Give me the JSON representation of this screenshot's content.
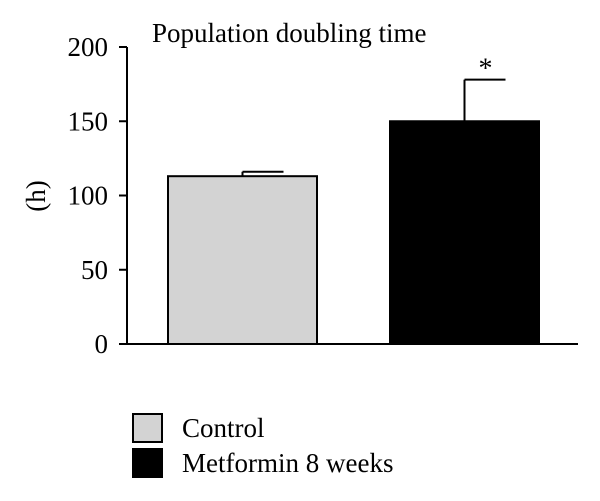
{
  "chart_data": {
    "type": "bar",
    "title": "Population doubling time",
    "xlabel": "",
    "ylabel": "(h)",
    "ylim": [
      0,
      200
    ],
    "yticks": [
      0,
      50,
      100,
      150,
      200
    ],
    "categories": [
      "Control",
      "Metformin 8 weeks"
    ],
    "values": [
      113,
      150
    ],
    "errors": [
      3,
      28
    ],
    "colors": [
      "#d3d3d3",
      "#000000"
    ],
    "annotations": [
      {
        "category": "Metformin 8 weeks",
        "text": "*"
      }
    ],
    "legend": {
      "position": "bottom-left",
      "entries": [
        {
          "label": "Control",
          "color": "#d3d3d3"
        },
        {
          "label": "Metformin 8 weeks",
          "color": "#000000"
        }
      ]
    },
    "grid": false
  }
}
